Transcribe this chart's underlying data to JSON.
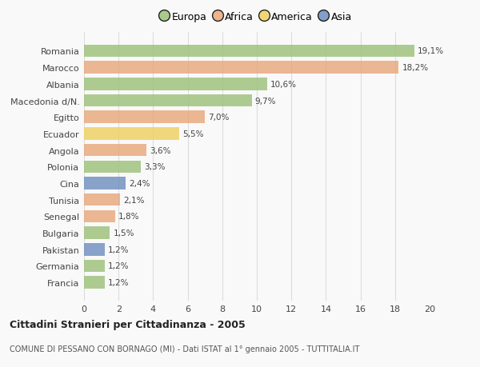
{
  "categories": [
    "Francia",
    "Germania",
    "Pakistan",
    "Bulgaria",
    "Senegal",
    "Tunisia",
    "Cina",
    "Polonia",
    "Angola",
    "Ecuador",
    "Egitto",
    "Macedonia d/N.",
    "Albania",
    "Marocco",
    "Romania"
  ],
  "values": [
    1.2,
    1.2,
    1.2,
    1.5,
    1.8,
    2.1,
    2.4,
    3.3,
    3.6,
    5.5,
    7.0,
    9.7,
    10.6,
    18.2,
    19.1
  ],
  "labels": [
    "1,2%",
    "1,2%",
    "1,2%",
    "1,5%",
    "1,8%",
    "2,1%",
    "2,4%",
    "3,3%",
    "3,6%",
    "5,5%",
    "7,0%",
    "9,7%",
    "10,6%",
    "18,2%",
    "19,1%"
  ],
  "continents": [
    "Europa",
    "Europa",
    "Asia",
    "Europa",
    "Africa",
    "Africa",
    "Asia",
    "Europa",
    "Africa",
    "America",
    "Africa",
    "Europa",
    "Europa",
    "Africa",
    "Europa"
  ],
  "colors": {
    "Europa": "#9dc17a",
    "Africa": "#e8a87c",
    "America": "#f0d060",
    "Asia": "#6f8fc0"
  },
  "legend_items": [
    "Europa",
    "Africa",
    "America",
    "Asia"
  ],
  "legend_colors": [
    "#9dc17a",
    "#e8a87c",
    "#f0d060",
    "#6f8fc0"
  ],
  "xlim": [
    0,
    20
  ],
  "xticks": [
    0,
    2,
    4,
    6,
    8,
    10,
    12,
    14,
    16,
    18,
    20
  ],
  "title": "Cittadini Stranieri per Cittadinanza - 2005",
  "subtitle": "COMUNE DI PESSANO CON BORNAGO (MI) - Dati ISTAT al 1° gennaio 2005 - TUTTITALIA.IT",
  "background_color": "#f9f9f9",
  "bar_height": 0.75,
  "grid_color": "#dddddd"
}
